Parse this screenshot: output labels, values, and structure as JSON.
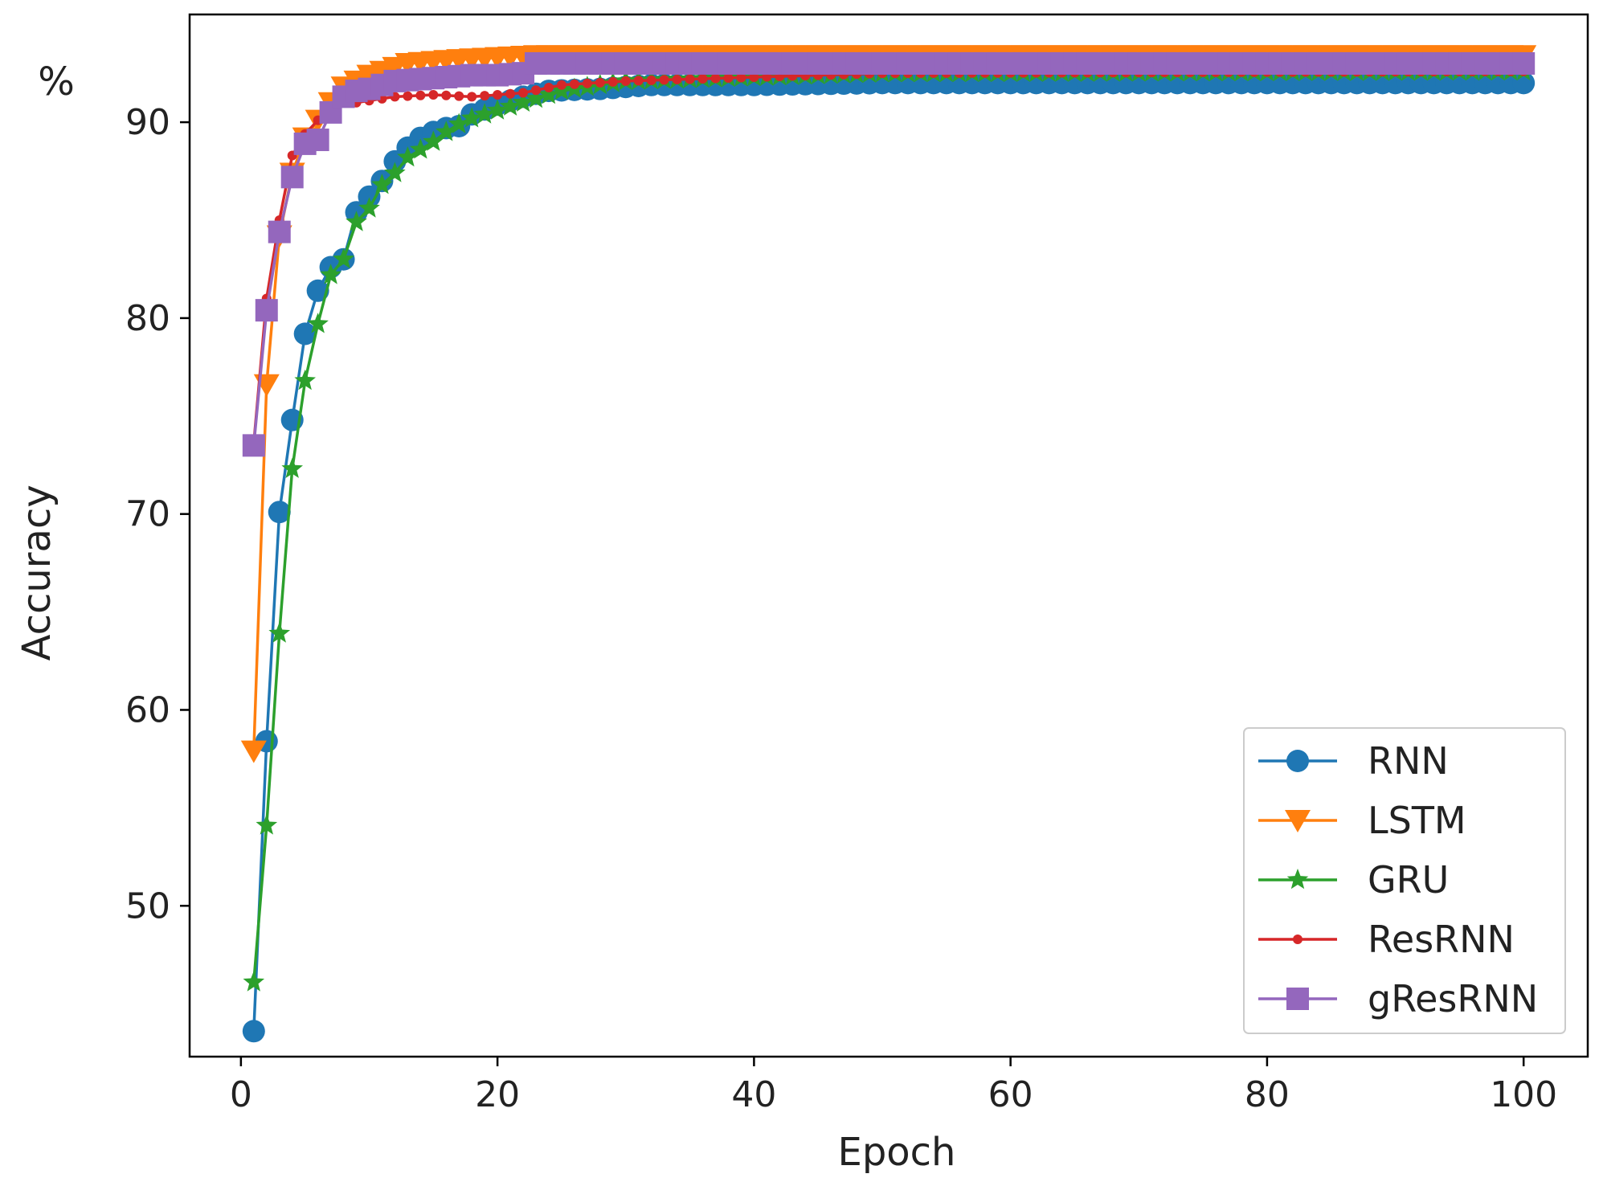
{
  "chart_data": {
    "type": "line",
    "title": "",
    "xlabel": "Epoch",
    "ylabel": "Accuracy",
    "yunit": "%",
    "xlim": [
      -4,
      105
    ],
    "ylim": [
      42.3,
      95.5
    ],
    "xticks": [
      0,
      20,
      40,
      60,
      80,
      100
    ],
    "yticks": [
      50,
      60,
      70,
      80,
      90
    ],
    "grid": false,
    "legend_position": "lower-right",
    "series": [
      {
        "name": "RNN",
        "color": "#1f77b4",
        "marker": "circle",
        "keypoints": [
          [
            1,
            43.6
          ],
          [
            2,
            58.4
          ],
          [
            3,
            70.1
          ],
          [
            4,
            74.8
          ],
          [
            5,
            79.2
          ],
          [
            6,
            81.4
          ],
          [
            7,
            82.6
          ],
          [
            8,
            83.0
          ],
          [
            9,
            85.4
          ],
          [
            10,
            86.2
          ],
          [
            11,
            87.0
          ],
          [
            12,
            88.0
          ],
          [
            13,
            88.7
          ],
          [
            14,
            89.2
          ],
          [
            15,
            89.5
          ],
          [
            16,
            89.7
          ],
          [
            17,
            89.8
          ],
          [
            18,
            90.4
          ],
          [
            20,
            90.9
          ],
          [
            22,
            91.3
          ],
          [
            24,
            91.6
          ],
          [
            28,
            91.7
          ],
          [
            32,
            91.9
          ],
          [
            40,
            91.9
          ],
          [
            50,
            92.0
          ],
          [
            100,
            92.0
          ]
        ]
      },
      {
        "name": "LSTM",
        "color": "#ff7f0e",
        "marker": "triangle-down",
        "keypoints": [
          [
            1,
            57.9
          ],
          [
            2,
            76.6
          ],
          [
            3,
            84.2
          ],
          [
            4,
            87.4
          ],
          [
            5,
            89.2
          ],
          [
            6,
            90.1
          ],
          [
            7,
            91.0
          ],
          [
            8,
            91.8
          ],
          [
            9,
            92.1
          ],
          [
            10,
            92.4
          ],
          [
            11,
            92.6
          ],
          [
            12,
            92.8
          ],
          [
            13,
            93.0
          ],
          [
            15,
            93.1
          ],
          [
            17,
            93.2
          ],
          [
            20,
            93.3
          ],
          [
            23,
            93.4
          ],
          [
            100,
            93.4
          ]
        ]
      },
      {
        "name": "GRU",
        "color": "#2ca02c",
        "marker": "star",
        "keypoints": [
          [
            1,
            46.1
          ],
          [
            2,
            54.1
          ],
          [
            3,
            63.9
          ],
          [
            4,
            72.3
          ],
          [
            5,
            76.8
          ],
          [
            6,
            79.7
          ],
          [
            7,
            82.2
          ],
          [
            8,
            83.0
          ],
          [
            9,
            84.9
          ],
          [
            10,
            85.6
          ],
          [
            11,
            86.8
          ],
          [
            12,
            87.4
          ],
          [
            13,
            88.2
          ],
          [
            14,
            88.6
          ],
          [
            15,
            89.0
          ],
          [
            16,
            89.5
          ],
          [
            17,
            89.9
          ],
          [
            18,
            90.2
          ],
          [
            20,
            90.6
          ],
          [
            22,
            91.0
          ],
          [
            25,
            91.6
          ],
          [
            30,
            92.1
          ],
          [
            40,
            92.3
          ],
          [
            50,
            92.5
          ],
          [
            100,
            92.6
          ]
        ]
      },
      {
        "name": "ResRNN",
        "color": "#d62728",
        "marker": "small-circle",
        "keypoints": [
          [
            1,
            73.6
          ],
          [
            2,
            81.0
          ],
          [
            3,
            85.0
          ],
          [
            4,
            88.3
          ],
          [
            5,
            89.4
          ],
          [
            6,
            90.1
          ],
          [
            7,
            90.7
          ],
          [
            8,
            91.0
          ],
          [
            9,
            91.0
          ],
          [
            10,
            91.1
          ],
          [
            12,
            91.3
          ],
          [
            15,
            91.4
          ],
          [
            18,
            91.3
          ],
          [
            20,
            91.4
          ],
          [
            22,
            91.5
          ],
          [
            25,
            91.9
          ],
          [
            30,
            92.1
          ],
          [
            40,
            92.3
          ],
          [
            50,
            92.5
          ],
          [
            100,
            92.6
          ]
        ]
      },
      {
        "name": "gResRNN",
        "color": "#9467bd",
        "marker": "square",
        "keypoints": [
          [
            1,
            73.5
          ],
          [
            2,
            80.4
          ],
          [
            3,
            84.4
          ],
          [
            4,
            87.2
          ],
          [
            5,
            88.9
          ],
          [
            6,
            89.1
          ],
          [
            7,
            90.5
          ],
          [
            8,
            91.3
          ],
          [
            9,
            91.6
          ],
          [
            10,
            91.7
          ],
          [
            11,
            91.9
          ],
          [
            12,
            92.1
          ],
          [
            14,
            92.2
          ],
          [
            16,
            92.3
          ],
          [
            18,
            92.4
          ],
          [
            20,
            92.4
          ],
          [
            22,
            92.5
          ],
          [
            23,
            93.0
          ],
          [
            100,
            93.0
          ]
        ]
      }
    ]
  }
}
